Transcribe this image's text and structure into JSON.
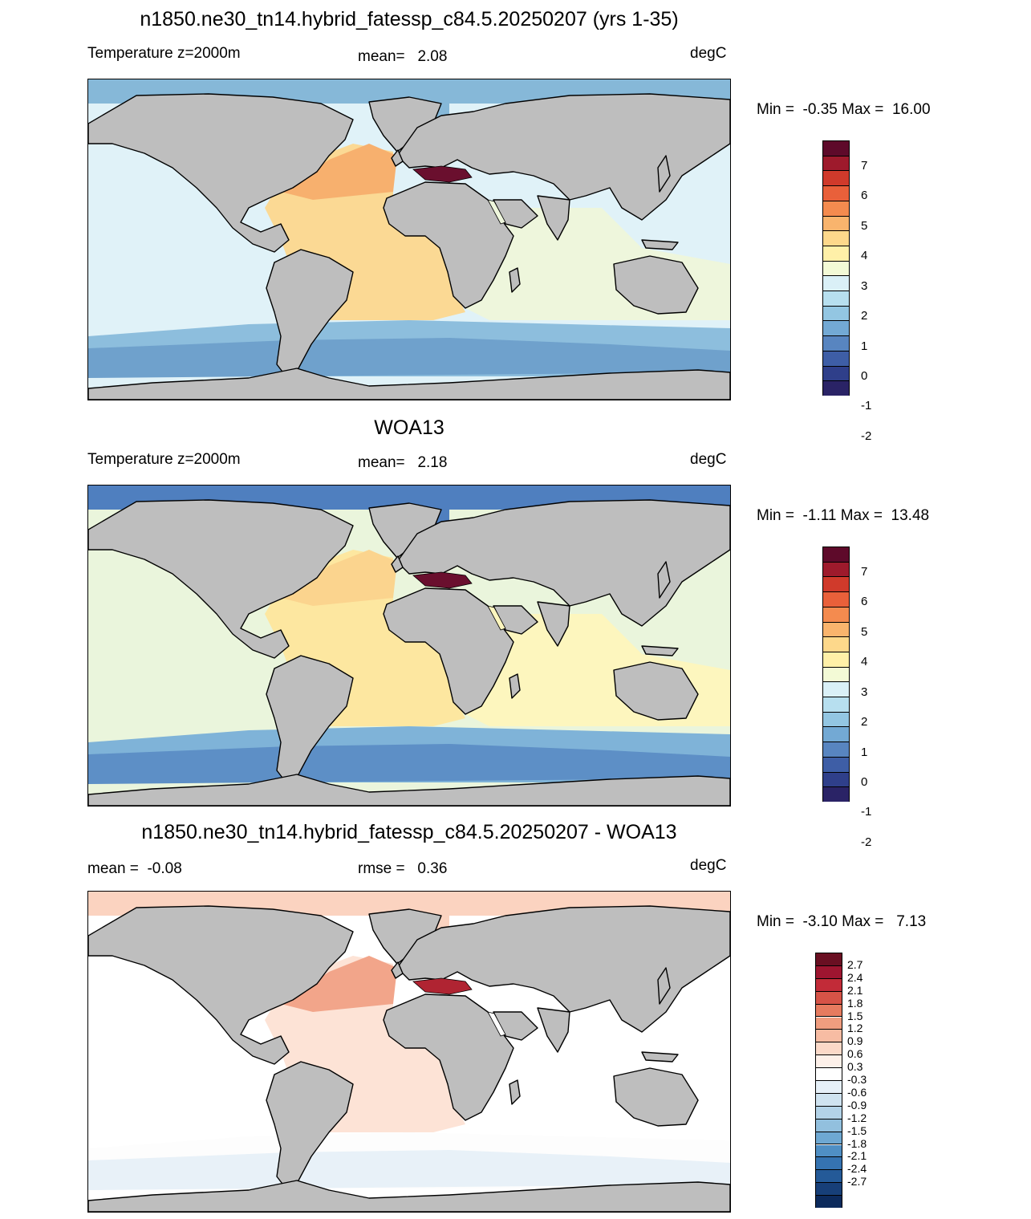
{
  "panels": [
    {
      "title": "n1850.ne30_tn14.hybrid_fatessp_c84.5.20250207 (yrs 1-35)",
      "left_label": "Temperature z=2000m",
      "center_label": "mean=   2.08",
      "units": "degC",
      "minmax": "Min =  -0.35 Max =  16.00",
      "colorbar": {
        "colors": [
          "#5e0a2a",
          "#9e1a2c",
          "#d03a2b",
          "#e9603a",
          "#f48b4f",
          "#f9b46d",
          "#fdd88b",
          "#fff0a8",
          "#f3fad6",
          "#daf0f7",
          "#b7dfef",
          "#93c6e2",
          "#73a9d4",
          "#5885c0",
          "#3e5ea6",
          "#2f3f8a",
          "#2a2366"
        ],
        "labels": [
          "7",
          "6",
          "5",
          "4",
          "3",
          "2",
          "1",
          "0",
          "-1",
          "-2"
        ]
      },
      "regions": {
        "ocean_base": "#e0f2f8",
        "atlantic": "#fbd994",
        "atlantic_north": "#f7b06e",
        "southern_band": "#8dbedd",
        "southern_deep": "#6fa1cc",
        "indian": "#eef6dc",
        "arctic": "#86b8d8",
        "med": "#6a0f2e",
        "land": "#bebebe"
      }
    },
    {
      "title": "WOA13",
      "left_label": "Temperature z=2000m",
      "center_label": "mean=   2.18",
      "units": "degC",
      "minmax": "Min =  -1.11 Max =  13.48",
      "colorbar": {
        "colors": [
          "#5e0a2a",
          "#9e1a2c",
          "#d03a2b",
          "#e9603a",
          "#f48b4f",
          "#f9b46d",
          "#fdd88b",
          "#fff0a8",
          "#f3fad6",
          "#daf0f7",
          "#b7dfef",
          "#93c6e2",
          "#73a9d4",
          "#5885c0",
          "#3e5ea6",
          "#2f3f8a",
          "#2a2366"
        ],
        "labels": [
          "7",
          "6",
          "5",
          "4",
          "3",
          "2",
          "1",
          "0",
          "-1",
          "-2"
        ]
      },
      "regions": {
        "ocean_base": "#eaf5dc",
        "atlantic": "#fde7a0",
        "atlantic_north": "#fbd48e",
        "southern_band": "#7fb3d8",
        "southern_deep": "#5d8fc6",
        "indian": "#fdf6be",
        "arctic": "#4f7fbf",
        "med": "#6a0f2e",
        "land": "#bebebe"
      }
    },
    {
      "title": "n1850.ne30_tn14.hybrid_fatessp_c84.5.20250207 - WOA13",
      "left_label": "mean =  -0.08",
      "center_label": "rmse =   0.36",
      "units": "degC",
      "minmax": "Min =  -3.10 Max =   7.13",
      "colorbar": {
        "colors": [
          "#6a0f22",
          "#9e1530",
          "#c22b38",
          "#d65347",
          "#e67b5f",
          "#f09d7f",
          "#f7bca3",
          "#fbd9c8",
          "#fdf0e9",
          "#ffffff",
          "#e6f0f8",
          "#cfe3f0",
          "#b3d3e8",
          "#92c0de",
          "#6ea8d2",
          "#4f8fc4",
          "#3573b1",
          "#245a98",
          "#173f78",
          "#0c2a5c"
        ],
        "labels": [
          "2.7",
          "2.4",
          "2.1",
          "1.8",
          "1.5",
          "1.2",
          "0.9",
          "0.6",
          "0.3",
          "-0.3",
          "-0.6",
          "-0.9",
          "-1.2",
          "-1.5",
          "-1.8",
          "-2.1",
          "-2.4",
          "-2.7"
        ]
      },
      "regions": {
        "ocean_base": "#ffffff",
        "atlantic": "#fde3d6",
        "atlantic_north": "#f2a58a",
        "southern_band": "#fdfdfd",
        "southern_deep": "#e8f1f8",
        "indian": "#ffffff",
        "arctic": "#fbd3c0",
        "med": "#b02432",
        "land": "#bebebe"
      }
    }
  ]
}
